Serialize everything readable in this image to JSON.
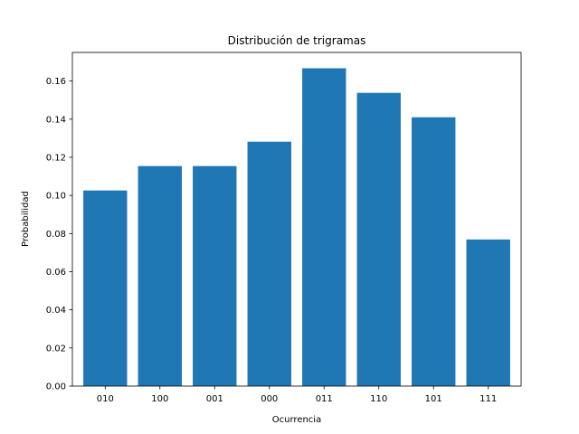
{
  "chart_data": {
    "type": "bar",
    "title": "Distribución de trigramas",
    "xlabel": "Ocurrencia",
    "ylabel": "Probabilidad",
    "categories": [
      "010",
      "100",
      "001",
      "000",
      "011",
      "110",
      "101",
      "111"
    ],
    "values": [
      0.1026,
      0.1154,
      0.1154,
      0.1282,
      0.1667,
      0.1538,
      0.141,
      0.0769
    ],
    "ylim": [
      0,
      0.175
    ],
    "yticks": [
      "0.00",
      "0.02",
      "0.04",
      "0.06",
      "0.08",
      "0.10",
      "0.12",
      "0.14",
      "0.16"
    ],
    "grid": false,
    "bar_color": "#1f77b4"
  }
}
